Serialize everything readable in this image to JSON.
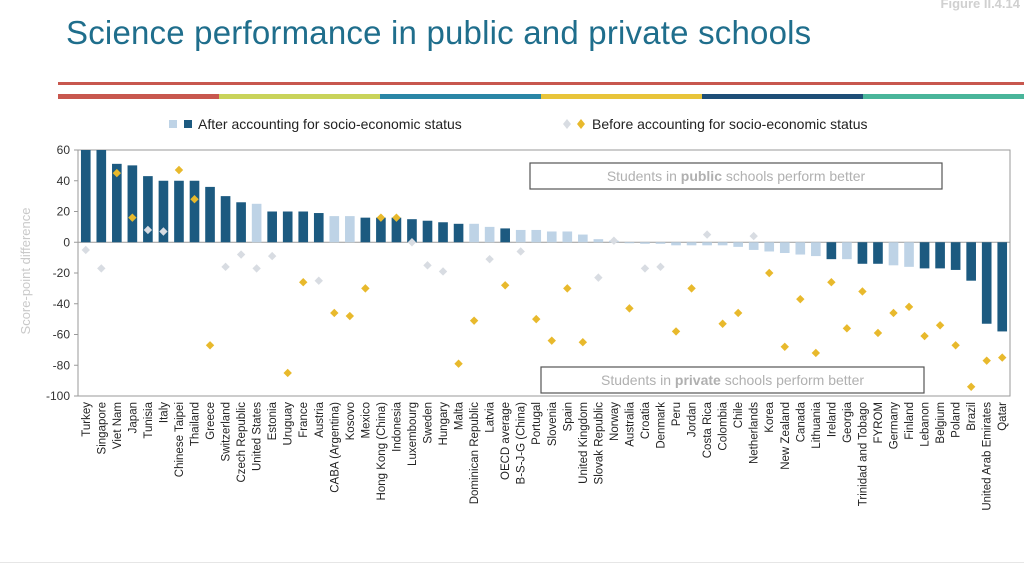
{
  "figure_label": "Figure II.4.14",
  "title": "Science performance in public and private schools",
  "colors": {
    "title": "#1f6e8c",
    "dark_bar": "#1c5a80",
    "light_bar": "#bed3e6",
    "diamond": "#e8b92c",
    "light_diamond": "#d8dce2",
    "rule_top": "#c8574e",
    "rule_segments": [
      "#c8574e",
      "#c9d35a",
      "#2a86a6",
      "#e8c43a",
      "#1e4e77",
      "#49b59a"
    ]
  },
  "legend": {
    "after": "After accounting for socio-economic status",
    "before": "Before accounting for socio-economic status"
  },
  "chart_data": {
    "type": "bar",
    "ylabel": "Score-point difference",
    "ylim": [
      -100,
      60
    ],
    "yticks": [
      60,
      40,
      20,
      0,
      -20,
      -40,
      -60,
      -80,
      -100
    ],
    "annotations": {
      "public_better": [
        "Students in ",
        "public",
        " schools perform better"
      ],
      "private_better": [
        "Students in ",
        "private",
        " schools perform better"
      ]
    },
    "categories": [
      "Turkey",
      "Singapore",
      "Viet Nam",
      "Japan",
      "Tunisia",
      "Italy",
      "Chinese Taipei",
      "Thailand",
      "Greece",
      "Switzerland",
      "Czech Republic",
      "United States",
      "Estonia",
      "Uruguay",
      "France",
      "Austria",
      "CABA (Argentina)",
      "Kosovo",
      "Mexico",
      "Hong Kong (China)",
      "Indonesia",
      "Luxembourg",
      "Sweden",
      "Hungary",
      "Malta",
      "Dominican Republic",
      "Latvia",
      "OECD average",
      "B-S-J-G (China)",
      "Portugal",
      "Slovenia",
      "Spain",
      "United Kingdom",
      "Slovak Republic",
      "Norway",
      "Australia",
      "Croatia",
      "Denmark",
      "Peru",
      "Jordan",
      "Costa Rica",
      "Colombia",
      "Chile",
      "Netherlands",
      "Korea",
      "New Zealand",
      "Canada",
      "Lithuania",
      "Ireland",
      "Georgia",
      "Trinidad and Tobago",
      "FYROM",
      "Germany",
      "Finland",
      "Lebanon",
      "Belgium",
      "Poland",
      "Brazil",
      "United Arab Emirates",
      "Qatar"
    ],
    "series": [
      {
        "name": "After accounting for socio-economic status",
        "values": [
          60,
          60,
          51,
          50,
          43,
          40,
          40,
          40,
          36,
          30,
          26,
          25,
          20,
          20,
          20,
          19,
          17,
          17,
          16,
          16,
          16,
          15,
          14,
          13,
          12,
          12,
          10,
          9,
          8,
          8,
          7,
          7,
          5,
          2,
          1,
          0,
          -1,
          -1,
          -2,
          -2,
          -2,
          -2,
          -3,
          -5,
          -6,
          -7,
          -8,
          -9,
          -11,
          -11,
          -14,
          -14,
          -15,
          -16,
          -17,
          -17,
          -18,
          -25,
          -53,
          -58
        ],
        "significant": [
          true,
          true,
          true,
          true,
          true,
          true,
          true,
          true,
          true,
          true,
          true,
          false,
          true,
          true,
          true,
          true,
          false,
          false,
          true,
          true,
          true,
          true,
          true,
          true,
          true,
          false,
          false,
          true,
          false,
          false,
          false,
          false,
          false,
          false,
          false,
          false,
          false,
          false,
          false,
          false,
          false,
          false,
          false,
          false,
          false,
          false,
          false,
          false,
          true,
          false,
          true,
          true,
          false,
          false,
          true,
          true,
          true,
          true,
          true,
          true
        ]
      },
      {
        "name": "Before accounting for socio-economic status",
        "values": [
          -5,
          -17,
          45,
          16,
          8,
          7,
          47,
          28,
          -67,
          -16,
          -8,
          -17,
          -9,
          -85,
          -26,
          -25,
          -46,
          -48,
          -30,
          16,
          16,
          0,
          -15,
          -19,
          -79,
          -51,
          -11,
          -28,
          -6,
          -50,
          -64,
          -30,
          -65,
          -23,
          1,
          -43,
          -17,
          -16,
          -58,
          -30,
          5,
          -53,
          -46,
          4,
          -20,
          -68,
          -37,
          -72,
          -26,
          -56,
          -32,
          -59,
          -46,
          -42,
          -61,
          -54,
          -67,
          -94,
          -77,
          -75
        ],
        "significant": [
          false,
          false,
          true,
          true,
          false,
          false,
          true,
          true,
          true,
          false,
          false,
          false,
          false,
          true,
          true,
          false,
          true,
          true,
          true,
          true,
          true,
          false,
          false,
          false,
          true,
          true,
          false,
          true,
          false,
          true,
          true,
          true,
          true,
          false,
          false,
          true,
          false,
          false,
          true,
          true,
          false,
          true,
          true,
          false,
          true,
          true,
          true,
          true,
          true,
          true,
          true,
          true,
          true,
          true,
          true,
          true,
          true,
          true,
          true,
          true
        ]
      }
    ]
  }
}
